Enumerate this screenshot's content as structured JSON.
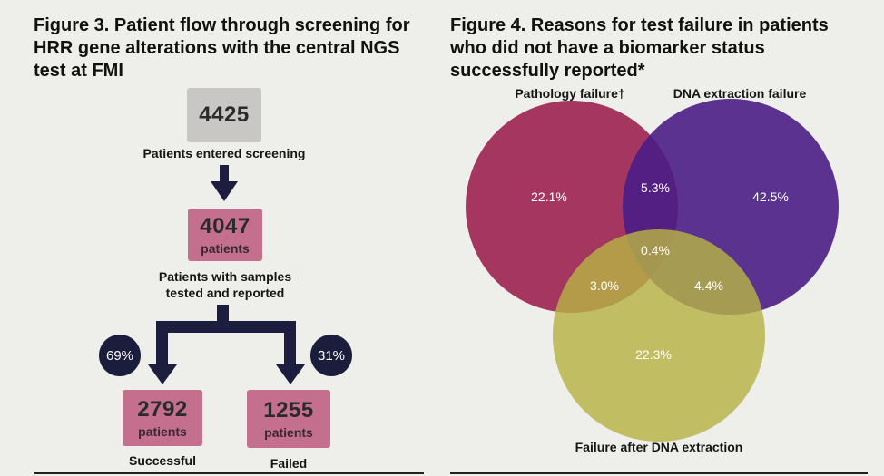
{
  "figure3": {
    "title": "Figure 3. Patient flow through screening for HRR gene alterations with the central NGS test at FMI",
    "top_box": {
      "value": "4425",
      "caption": "Patients entered screening"
    },
    "mid_box": {
      "value": "4047",
      "unit": "patients",
      "caption_line1": "Patients with samples",
      "caption_line2": "tested and reported"
    },
    "left_badge": "69%",
    "right_badge": "31%",
    "left_box": {
      "value": "2792",
      "unit": "patients",
      "caption": "Successful"
    },
    "right_box": {
      "value": "1255",
      "unit": "patients",
      "caption": "Failed"
    },
    "colors": {
      "grey_box": "#c9c7c6",
      "pink_box": "#c46f8e",
      "arrow": "#1c1d3f",
      "badge": "#1b1d3d"
    }
  },
  "figure4": {
    "title": "Figure 4. Reasons for test failure in patients who did not have a biomarker status successfully reported*",
    "sets": [
      {
        "label": "Pathology failure†",
        "color": "#9b2150"
      },
      {
        "label": "DNA extraction failure",
        "color": "#4a1d86"
      },
      {
        "label": "Failure after DNA extraction",
        "color": "#b7b244"
      }
    ],
    "regions": {
      "pathology_only": "22.1%",
      "dna_only": "42.5%",
      "after_only": "22.3%",
      "pathology_dna": "5.3%",
      "pathology_after": "3.0%",
      "dna_after": "4.4%",
      "all_three": "0.4%"
    }
  }
}
